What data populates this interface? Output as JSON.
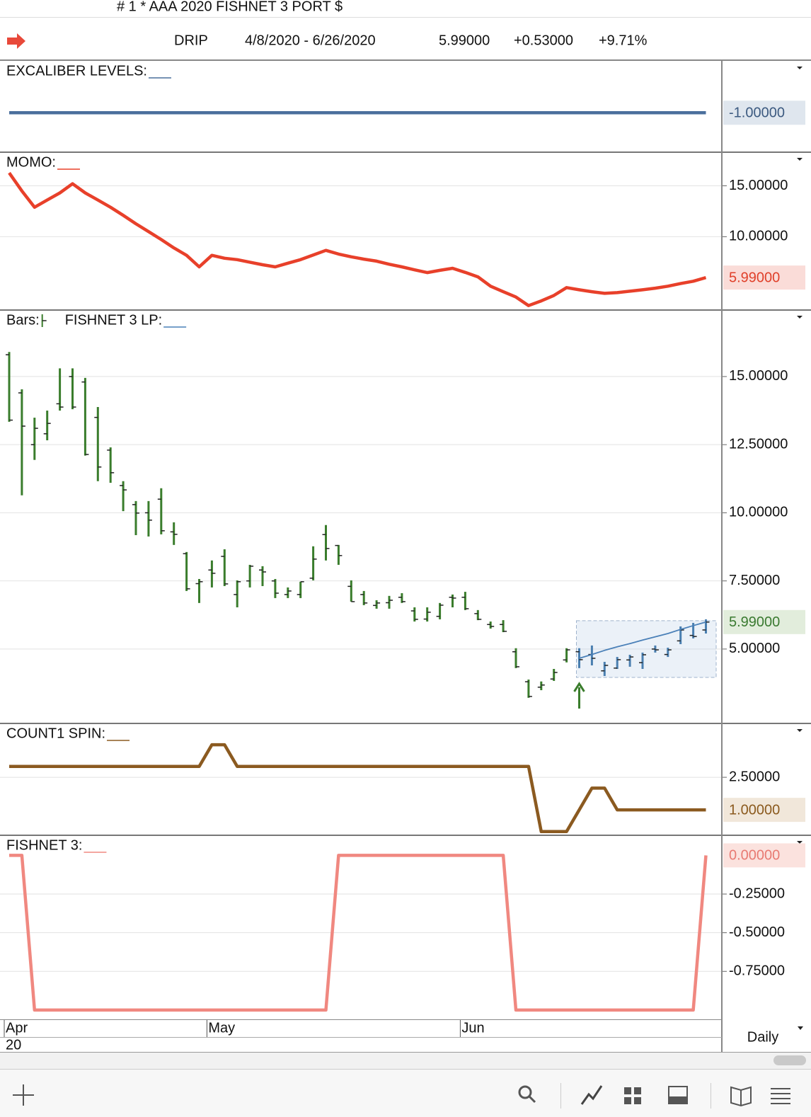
{
  "header": {
    "title": "# 1 * AAA 2020 FISHNET 3 PORT $",
    "symbol": "DRIP",
    "date_range": "4/8/2020 - 6/26/2020",
    "last": "5.99000",
    "change": "+0.53000",
    "change_percent": "+9.71%"
  },
  "timeframe": "Daily",
  "chart_data": [
    {
      "type": "line",
      "ylim": [
        -1.38,
        -0.5
      ],
      "yticks": [],
      "badge": {
        "value": -1,
        "label": "-1.00000"
      },
      "series": [
        {
          "name": "EXCALIBER LEVELS:",
          "color": "#4a6f9c",
          "values": [
            -1,
            -1,
            -1,
            -1,
            -1,
            -1,
            -1,
            -1,
            -1,
            -1,
            -1,
            -1,
            -1,
            -1,
            -1,
            -1,
            -1,
            -1,
            -1,
            -1,
            -1,
            -1,
            -1,
            -1,
            -1,
            -1,
            -1,
            -1,
            -1,
            -1,
            -1,
            -1,
            -1,
            -1,
            -1,
            -1,
            -1,
            -1,
            -1,
            -1,
            -1,
            -1,
            -1,
            -1,
            -1,
            -1,
            -1,
            -1,
            -1,
            -1,
            -1,
            -1,
            -1,
            -1,
            -1,
            -1
          ]
        }
      ]
    },
    {
      "type": "line",
      "ylim": [
        2.8,
        18.3
      ],
      "yticks": [
        {
          "value": 15,
          "label": "15.00000"
        },
        {
          "value": 10,
          "label": "10.00000"
        }
      ],
      "badge": {
        "value": 5.99,
        "label": "5.99000"
      },
      "series": [
        {
          "name": "MOMO:",
          "color": "#e8402a",
          "values": [
            16.27,
            14.5,
            12.89,
            13.6,
            14.3,
            15.2,
            14.3,
            13.6,
            12.89,
            12.1,
            11.27,
            10.5,
            9.72,
            8.9,
            8.17,
            7.04,
            8.17,
            7.89,
            7.75,
            7.5,
            7.25,
            7.04,
            7.4,
            7.75,
            8.2,
            8.66,
            8.3,
            8.03,
            7.8,
            7.6,
            7.3,
            7.04,
            6.75,
            6.48,
            6.7,
            6.9,
            6.5,
            6.06,
            5.14,
            4.6,
            4.08,
            3.24,
            3.7,
            4.23,
            5.0,
            4.79,
            4.6,
            4.44,
            4.51,
            4.65,
            4.79,
            4.95,
            5.14,
            5.4,
            5.63,
            5.99
          ]
        }
      ]
    },
    {
      "type": "ohlc",
      "ylim": [
        2.27,
        17.44
      ],
      "yticks": [
        {
          "value": 15,
          "label": "15.00000"
        },
        {
          "value": 12.5,
          "label": "12.50000"
        },
        {
          "value": 10,
          "label": "10.00000"
        },
        {
          "value": 7.5,
          "label": "7.50000"
        },
        {
          "value": 5,
          "label": "5.00000"
        }
      ],
      "badge": {
        "value": 5.99,
        "label": "5.99000"
      },
      "categories": [
        "Apr",
        null,
        null,
        null,
        null,
        null,
        null,
        null,
        null,
        null,
        null,
        null,
        null,
        null,
        null,
        null,
        "May",
        null,
        null,
        null,
        null,
        null,
        null,
        null,
        null,
        null,
        null,
        null,
        null,
        null,
        null,
        null,
        null,
        null,
        null,
        null,
        "Jun",
        null,
        null,
        null,
        null,
        null,
        null,
        null,
        null,
        null,
        null,
        null,
        null,
        null,
        null,
        null,
        null,
        null,
        null,
        null
      ],
      "x_year_label": "20",
      "range_box": [
        3.96,
        6.04
      ],
      "series": [
        {
          "name": "Bars:",
          "type": "ohlc",
          "open": [
            15.8,
            14.4,
            12.5,
            12.9,
            14.0,
            15.0,
            14.8,
            13.5,
            12.3,
            11.0,
            10.3,
            10.0,
            10.5,
            9.3,
            8.5,
            7.4,
            7.9,
            8.4,
            7.0,
            7.5,
            7.9,
            7.5,
            7.0,
            7.0,
            7.6,
            9.2,
            8.8,
            7.3,
            7.0,
            6.6,
            6.7,
            6.9,
            6.4,
            6.1,
            6.2,
            6.9,
            6.9,
            6.3,
            5.9,
            5.9,
            4.9,
            3.8,
            3.6,
            3.9,
            4.6,
            4.9,
            4.8,
            4.2,
            4.3,
            4.6,
            4.5,
            5.0,
            4.8,
            5.3,
            5.5,
            5.7
          ],
          "high": [
            15.9,
            14.53,
            13.49,
            13.75,
            15.3,
            15.3,
            14.95,
            13.88,
            12.4,
            11.16,
            10.43,
            10.43,
            10.9,
            9.65,
            8.56,
            7.57,
            8.25,
            8.66,
            7.52,
            8.09,
            8.04,
            7.57,
            7.26,
            7.47,
            8.77,
            9.55,
            8.82,
            7.52,
            7.13,
            6.79,
            6.95,
            7.05,
            6.53,
            6.53,
            6.69,
            7.0,
            7.1,
            6.43,
            6.01,
            6.06,
            5.03,
            3.88,
            3.81,
            4.27,
            5.03,
            5.03,
            5.13,
            4.53,
            4.71,
            4.79,
            4.87,
            5.13,
            5.05,
            5.83,
            5.96,
            6.09
          ],
          "low": [
            13.34,
            10.64,
            11.94,
            12.66,
            13.75,
            13.8,
            12.1,
            11.16,
            11.1,
            10.06,
            9.18,
            9.13,
            9.21,
            8.82,
            7.13,
            6.69,
            7.26,
            7.31,
            6.53,
            7.26,
            7.31,
            6.87,
            6.87,
            6.87,
            7.52,
            8.25,
            8.09,
            6.74,
            6.61,
            6.48,
            6.48,
            6.69,
            6.01,
            6.01,
            6.09,
            6.53,
            6.43,
            6.06,
            5.75,
            5.62,
            4.3,
            3.21,
            3.49,
            3.83,
            4.51,
            4.3,
            4.4,
            4.01,
            4.27,
            4.35,
            4.27,
            4.87,
            4.71,
            5.18,
            5.39,
            5.57
          ],
          "close": [
            13.4,
            13.18,
            13.1,
            13.28,
            13.88,
            13.88,
            12.14,
            11.68,
            11.47,
            10.84,
            9.99,
            9.73,
            9.34,
            9.21,
            7.21,
            7.47,
            7.78,
            7.39,
            7.47,
            8.04,
            7.83,
            7.05,
            7.13,
            7.47,
            8.3,
            8.69,
            8.43,
            6.74,
            6.69,
            6.69,
            6.79,
            6.74,
            6.09,
            6.35,
            6.61,
            6.87,
            6.48,
            6.09,
            5.83,
            5.65,
            4.35,
            3.26,
            3.68,
            4.14,
            4.97,
            4.61,
            4.66,
            4.4,
            4.61,
            4.71,
            4.79,
            4.97,
            4.97,
            5.7,
            5.46,
            5.99
          ],
          "colors": [
            "#3a7d2c",
            "#3a7d2c",
            "#3a7d2c",
            "#3a7d2c",
            "#3a7d2c",
            "#3a7d2c",
            "#3a7d2c",
            "#3a7d2c",
            "#3a7d2c",
            "#3a7d2c",
            "#3a7d2c",
            "#3a7d2c",
            "#3a7d2c",
            "#3a7d2c",
            "#3a7d2c",
            "#3a7d2c",
            "#3a7d2c",
            "#3a7d2c",
            "#3a7d2c",
            "#3a7d2c",
            "#3a7d2c",
            "#3a7d2c",
            "#3a7d2c",
            "#3a7d2c",
            "#3a7d2c",
            "#3a7d2c",
            "#3a7d2c",
            "#3a7d2c",
            "#3a7d2c",
            "#3a7d2c",
            "#3a7d2c",
            "#3a7d2c",
            "#3a7d2c",
            "#3a7d2c",
            "#3a7d2c",
            "#3a7d2c",
            "#3a7d2c",
            "#3a7d2c",
            "#3a7d2c",
            "#3a7d2c",
            "#3a7d2c",
            "#3a7d2c",
            "#3a7d2c",
            "#3a7d2c",
            "#3a7d2c",
            "#4a7fb0",
            "#4a7fb0",
            "#4a7fb0",
            "#4a7fb0",
            "#4a7fb0",
            "#4a7fb0",
            "#4a7fb0",
            "#4a7fb0",
            "#4a7fb0",
            "#4a7fb0",
            "#4a7fb0"
          ]
        },
        {
          "name": "FISHNET 3 LP:",
          "type": "line",
          "color": "#4a80b8",
          "values": [
            null,
            null,
            null,
            null,
            null,
            null,
            null,
            null,
            null,
            null,
            null,
            null,
            null,
            null,
            null,
            null,
            null,
            null,
            null,
            null,
            null,
            null,
            null,
            null,
            null,
            null,
            null,
            null,
            null,
            null,
            null,
            null,
            null,
            null,
            null,
            null,
            null,
            null,
            null,
            null,
            null,
            null,
            null,
            null,
            null,
            4.66,
            4.8,
            4.95,
            5.08,
            5.2,
            5.33,
            5.45,
            5.57,
            5.72,
            5.86,
            5.99
          ]
        }
      ]
    },
    {
      "type": "line",
      "ylim": [
        -0.17,
        4.98
      ],
      "yticks": [
        {
          "value": 2.5,
          "label": "2.50000"
        }
      ],
      "badge": {
        "value": 1,
        "label": "1.00000"
      },
      "series": [
        {
          "name": "COUNT1 SPIN:",
          "color": "#8b5a20",
          "values": [
            3,
            3,
            3,
            3,
            3,
            3,
            3,
            3,
            3,
            3,
            3,
            3,
            3,
            3,
            3,
            3,
            4,
            4,
            3,
            3,
            3,
            3,
            3,
            3,
            3,
            3,
            3,
            3,
            3,
            3,
            3,
            3,
            3,
            3,
            3,
            3,
            3,
            3,
            3,
            3,
            3,
            3,
            0,
            0,
            0,
            1,
            2,
            2,
            1,
            1,
            1,
            1,
            1,
            1,
            1,
            1
          ]
        }
      ]
    },
    {
      "type": "line",
      "ylim": [
        -1.06,
        0.13
      ],
      "yticks": [
        {
          "value": -0.25,
          "label": "-0.25000"
        },
        {
          "value": -0.5,
          "label": "-0.50000"
        },
        {
          "value": -0.75,
          "label": "-0.75000"
        }
      ],
      "badge": {
        "value": 0,
        "label": "0.00000"
      },
      "series": [
        {
          "name": "FISHNET 3:",
          "color": "#f08880",
          "values": [
            0,
            0,
            -1,
            -1,
            -1,
            -1,
            -1,
            -1,
            -1,
            -1,
            -1,
            -1,
            -1,
            -1,
            -1,
            -1,
            -1,
            -1,
            -1,
            -1,
            -1,
            -1,
            -1,
            -1,
            -1,
            -1,
            0,
            0,
            0,
            0,
            0,
            0,
            0,
            0,
            0,
            0,
            0,
            0,
            0,
            0,
            -1,
            -1,
            -1,
            -1,
            -1,
            -1,
            -1,
            -1,
            -1,
            -1,
            -1,
            -1,
            -1,
            -1,
            -1,
            0
          ]
        }
      ]
    }
  ]
}
